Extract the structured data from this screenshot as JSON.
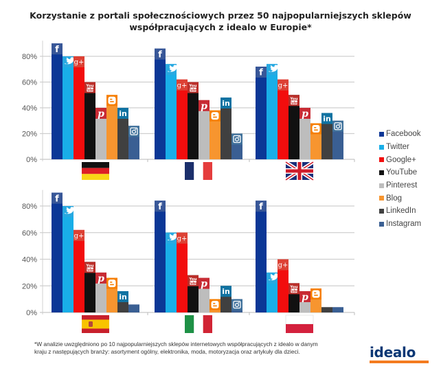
{
  "title_lines": [
    "Korzystanie z portali społecznościowych przez 50 najpopularniejszych sklepów",
    "współpracujących z idealo w Europie*"
  ],
  "footnote": "*W analizie uwzględniono po 10 najpopularniejszych sklepów internetowych współpracujących z idealo w danym kraju z następujących branży: asortyment ogólny, elektronika, moda, motoryzacja oraz artykuły dla dzieci.",
  "logo": {
    "text": "idealo",
    "bar_color": "#f47c20",
    "text_color": "#0a3774"
  },
  "chart_data": {
    "type": "bar",
    "title": "Korzystanie z portali społecznościowych przez 50 najpopularniejszych sklepów współpracujących z idealo w Europie*",
    "xlabel": "",
    "ylabel": "",
    "ylim": [
      0,
      90
    ],
    "yticks": [
      "0%",
      "20%",
      "40%",
      "60%",
      "80%"
    ],
    "ytick_values": [
      0,
      20,
      40,
      60,
      80
    ],
    "grid": true,
    "legend_position": "right",
    "series": [
      {
        "name": "Facebook",
        "color": "#0b3796",
        "icon": "facebook-icon",
        "icon_glyph": "f",
        "icon_bg": "#3b5998"
      },
      {
        "name": "Twitter",
        "color": "#19aee8",
        "icon": "twitter-icon",
        "icon_glyph": "🐦",
        "icon_bg": "#29a9e0"
      },
      {
        "name": "Google+",
        "color": "#f20d0d",
        "icon": "google-plus-icon",
        "icon_glyph": "g+",
        "icon_bg": "#db4437"
      },
      {
        "name": "YouTube",
        "color": "#111111",
        "icon": "youtube-icon",
        "icon_glyph": "You",
        "icon_bg": "#c4302b"
      },
      {
        "name": "Pinterest",
        "color": "#bdbdbd",
        "icon": "pinterest-icon",
        "icon_glyph": "P",
        "icon_bg": "#c8232c"
      },
      {
        "name": "Blog",
        "color": "#f7952f",
        "icon": "blogger-icon",
        "icon_glyph": "B",
        "icon_bg": "#f57d00"
      },
      {
        "name": "LinkedIn",
        "color": "#404040",
        "icon": "linkedin-icon",
        "icon_glyph": "in",
        "icon_bg": "#0e76a8"
      },
      {
        "name": "Instagram",
        "color": "#3a5f93",
        "icon": "instagram-icon",
        "icon_glyph": "◙",
        "icon_bg": "#3f729b"
      }
    ],
    "panels": [
      {
        "country": "Germany",
        "flag": "germany",
        "values": [
          90,
          80,
          80,
          60,
          40,
          50,
          40,
          26
        ],
        "show_icons": [
          true,
          true,
          true,
          true,
          true,
          true,
          true,
          true
        ]
      },
      {
        "country": "France",
        "flag": "france",
        "values": [
          86,
          74,
          62,
          60,
          46,
          38,
          48,
          20
        ],
        "show_icons": [
          true,
          true,
          true,
          true,
          true,
          true,
          true,
          true
        ]
      },
      {
        "country": "United Kingdom",
        "flag": "uk",
        "values": [
          72,
          74,
          62,
          50,
          40,
          28,
          36,
          30
        ],
        "show_icons": [
          true,
          true,
          true,
          true,
          true,
          true,
          true,
          true
        ]
      },
      {
        "country": "Spain",
        "flag": "spain",
        "values": [
          90,
          80,
          62,
          38,
          30,
          26,
          16,
          6
        ],
        "show_icons": [
          true,
          true,
          true,
          true,
          true,
          true,
          true,
          false
        ]
      },
      {
        "country": "Italy",
        "flag": "italy",
        "values": [
          84,
          60,
          60,
          28,
          26,
          10,
          20,
          10
        ],
        "show_icons": [
          true,
          true,
          true,
          true,
          true,
          true,
          true,
          true
        ]
      },
      {
        "country": "Poland",
        "flag": "poland",
        "values": [
          84,
          30,
          40,
          22,
          16,
          18,
          4,
          4
        ],
        "show_icons": [
          true,
          true,
          true,
          true,
          true,
          true,
          false,
          false
        ]
      }
    ]
  }
}
